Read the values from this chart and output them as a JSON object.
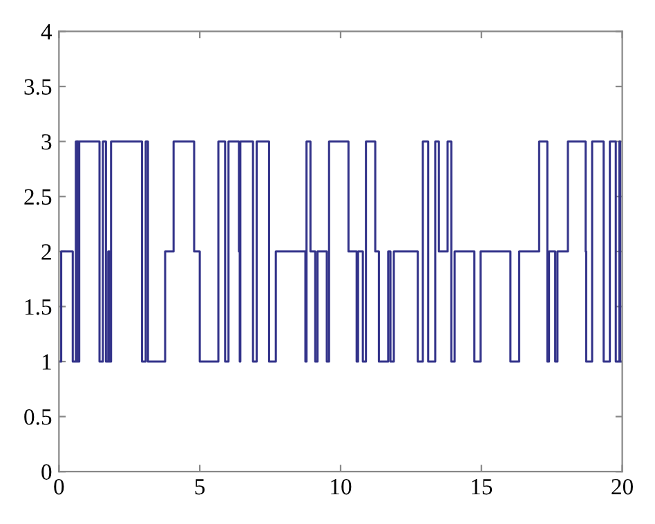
{
  "chart_data": {
    "type": "step",
    "xlim": [
      0,
      20
    ],
    "ylim": [
      0,
      4
    ],
    "xticks": [
      0,
      5,
      10,
      15,
      20
    ],
    "yticks": [
      0,
      0.5,
      1,
      1.5,
      2,
      2.5,
      3,
      3.5,
      4
    ],
    "grid": false,
    "marker": "none",
    "line_style": "solid",
    "series": [
      {
        "color": "#33338a",
        "x": [
          0,
          0.08,
          0.49,
          0.6,
          0.64,
          0.66,
          0.69,
          0.72,
          1.44,
          1.56,
          1.67,
          1.75,
          1.8,
          1.85,
          2.95,
          3.08,
          3.16,
          3.77,
          4.07,
          4.8,
          5.0,
          5.66,
          5.9,
          6.02,
          6.39,
          6.42,
          6.44,
          6.89,
          7.02,
          7.46,
          7.7,
          8.75,
          8.79,
          8.93,
          9.1,
          9.18,
          9.51,
          9.59,
          10.28,
          10.57,
          10.62,
          10.79,
          10.9,
          11.23,
          11.36,
          11.69,
          11.77,
          11.89,
          12.74,
          12.92,
          13.11,
          13.36,
          13.49,
          13.8,
          13.93,
          14.05,
          14.75,
          14.97,
          16.03,
          16.34,
          17.05,
          17.34,
          17.4,
          17.62,
          17.7,
          18.07,
          18.7,
          18.72,
          18.93,
          19.34,
          19.56,
          19.77,
          19.9,
          19.93,
          20
        ],
        "values": [
          1,
          2,
          1,
          3,
          1,
          3,
          1,
          3,
          1,
          3,
          1,
          2,
          1,
          3,
          1,
          3,
          1,
          2,
          3,
          2,
          1,
          3,
          1,
          3,
          2,
          1,
          3,
          1,
          3,
          1,
          2,
          1,
          3,
          2,
          1,
          2,
          1,
          3,
          2,
          1,
          2,
          1,
          3,
          2,
          1,
          2,
          1,
          2,
          1,
          3,
          1,
          3,
          2,
          3,
          1,
          2,
          1,
          2,
          1,
          2,
          3,
          1,
          2,
          1,
          2,
          3,
          2,
          1,
          3,
          1,
          3,
          1,
          3,
          1,
          1
        ]
      }
    ]
  }
}
